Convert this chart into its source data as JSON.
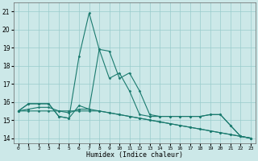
{
  "xlabel": "Humidex (Indice chaleur)",
  "bg_color": "#cce8e8",
  "grid_color": "#99cccc",
  "line_color": "#1a7a6e",
  "xlim": [
    -0.5,
    23.5
  ],
  "ylim": [
    13.7,
    21.5
  ],
  "yticks": [
    14,
    15,
    16,
    17,
    18,
    19,
    20,
    21
  ],
  "xticks": [
    0,
    1,
    2,
    3,
    4,
    5,
    6,
    7,
    8,
    9,
    10,
    11,
    12,
    13,
    14,
    15,
    16,
    17,
    18,
    19,
    20,
    21,
    22,
    23
  ],
  "series": [
    [
      15.5,
      15.9,
      15.9,
      15.9,
      15.2,
      15.1,
      18.5,
      20.9,
      18.9,
      18.8,
      17.3,
      17.6,
      16.6,
      15.3,
      15.2,
      15.2,
      15.2,
      15.2,
      15.2,
      15.3,
      15.3,
      14.7,
      14.1,
      14.0
    ],
    [
      15.5,
      15.9,
      15.9,
      15.9,
      15.2,
      15.1,
      15.8,
      15.6,
      18.9,
      17.3,
      17.6,
      16.6,
      15.3,
      15.2,
      15.2,
      15.2,
      15.2,
      15.2,
      15.2,
      15.3,
      15.3,
      14.7,
      14.1,
      14.0
    ],
    [
      15.5,
      15.5,
      15.5,
      15.5,
      15.5,
      15.5,
      15.5,
      15.5,
      15.5,
      15.4,
      15.3,
      15.2,
      15.1,
      15.0,
      14.9,
      14.8,
      14.7,
      14.6,
      14.5,
      14.4,
      14.3,
      14.2,
      14.1,
      14.0
    ],
    [
      15.5,
      15.6,
      15.7,
      15.7,
      15.5,
      15.4,
      15.6,
      15.6,
      15.5,
      15.4,
      15.3,
      15.2,
      15.1,
      15.0,
      14.9,
      14.8,
      14.7,
      14.6,
      14.5,
      14.4,
      14.3,
      14.2,
      14.1,
      14.0
    ]
  ],
  "x_values": [
    0,
    1,
    2,
    3,
    4,
    5,
    6,
    7,
    8,
    9,
    10,
    11,
    12,
    13,
    14,
    15,
    16,
    17,
    18,
    19,
    20,
    21,
    22,
    23
  ]
}
